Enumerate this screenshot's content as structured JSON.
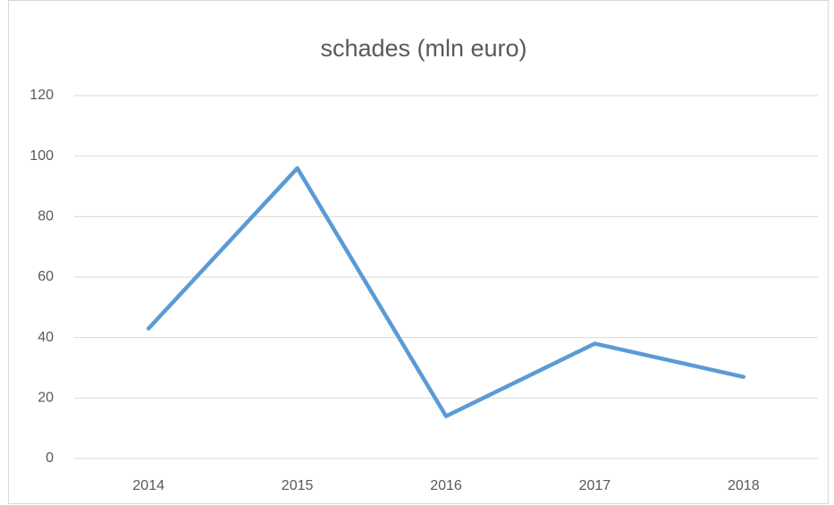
{
  "chart_data": {
    "type": "line",
    "title": "schades (mln euro)",
    "categories": [
      "2014",
      "2015",
      "2016",
      "2017",
      "2018"
    ],
    "values": [
      43,
      96,
      14,
      38,
      27
    ],
    "color": "#5b9bd5",
    "ylim": [
      0,
      120
    ],
    "yticks": [
      0,
      20,
      40,
      60,
      80,
      100,
      120
    ],
    "grid": true
  }
}
